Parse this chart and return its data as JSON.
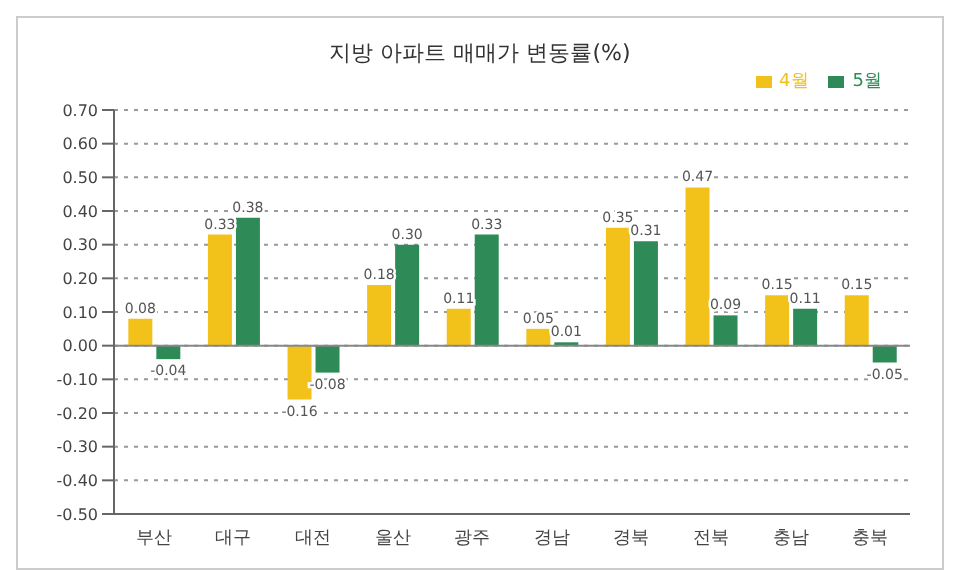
{
  "chart_data": {
    "type": "bar",
    "title": "지방 아파트 매매가 변동률(%)",
    "categories": [
      "부산",
      "대구",
      "대전",
      "울산",
      "광주",
      "경남",
      "경북",
      "전북",
      "충남",
      "충북"
    ],
    "series": [
      {
        "name": "4월",
        "color": "#f2c21b",
        "values": [
          0.08,
          0.33,
          -0.16,
          0.18,
          0.11,
          0.05,
          0.35,
          0.47,
          0.15,
          0.15
        ],
        "value_labels": [
          "0.08",
          "0.33",
          "-0.16",
          "0.18",
          "0.11",
          "0.05",
          "0.35",
          "0.47",
          "0.15",
          "0.15"
        ]
      },
      {
        "name": "5월",
        "color": "#2e8b57",
        "values": [
          -0.04,
          0.38,
          -0.08,
          0.3,
          0.33,
          0.01,
          0.31,
          0.09,
          0.11,
          -0.05
        ],
        "value_labels": [
          "-0.04",
          "0.38",
          "-0.08",
          "0.30",
          "0.33",
          "0.01",
          "0.31",
          "0.09",
          "0.11",
          "-0.05"
        ]
      }
    ],
    "ylim": [
      -0.5,
      0.7
    ],
    "yticks": [
      {
        "value": -0.5,
        "label": "-0.50"
      },
      {
        "value": -0.4,
        "label": "-0.40"
      },
      {
        "value": -0.3,
        "label": "-0.30"
      },
      {
        "value": -0.2,
        "label": "-0.20"
      },
      {
        "value": -0.1,
        "label": "-0.10"
      },
      {
        "value": 0,
        "label": "0.00"
      },
      {
        "value": 0.1,
        "label": "0.10"
      },
      {
        "value": 0.2,
        "label": "0.20"
      },
      {
        "value": 0.3,
        "label": "0.30"
      },
      {
        "value": 0.4,
        "label": "0.40"
      },
      {
        "value": 0.5,
        "label": "0.50"
      },
      {
        "value": 0.6,
        "label": "0.60"
      },
      {
        "value": 0.7,
        "label": "0.70"
      }
    ],
    "grid": "y",
    "legend": "top right"
  }
}
